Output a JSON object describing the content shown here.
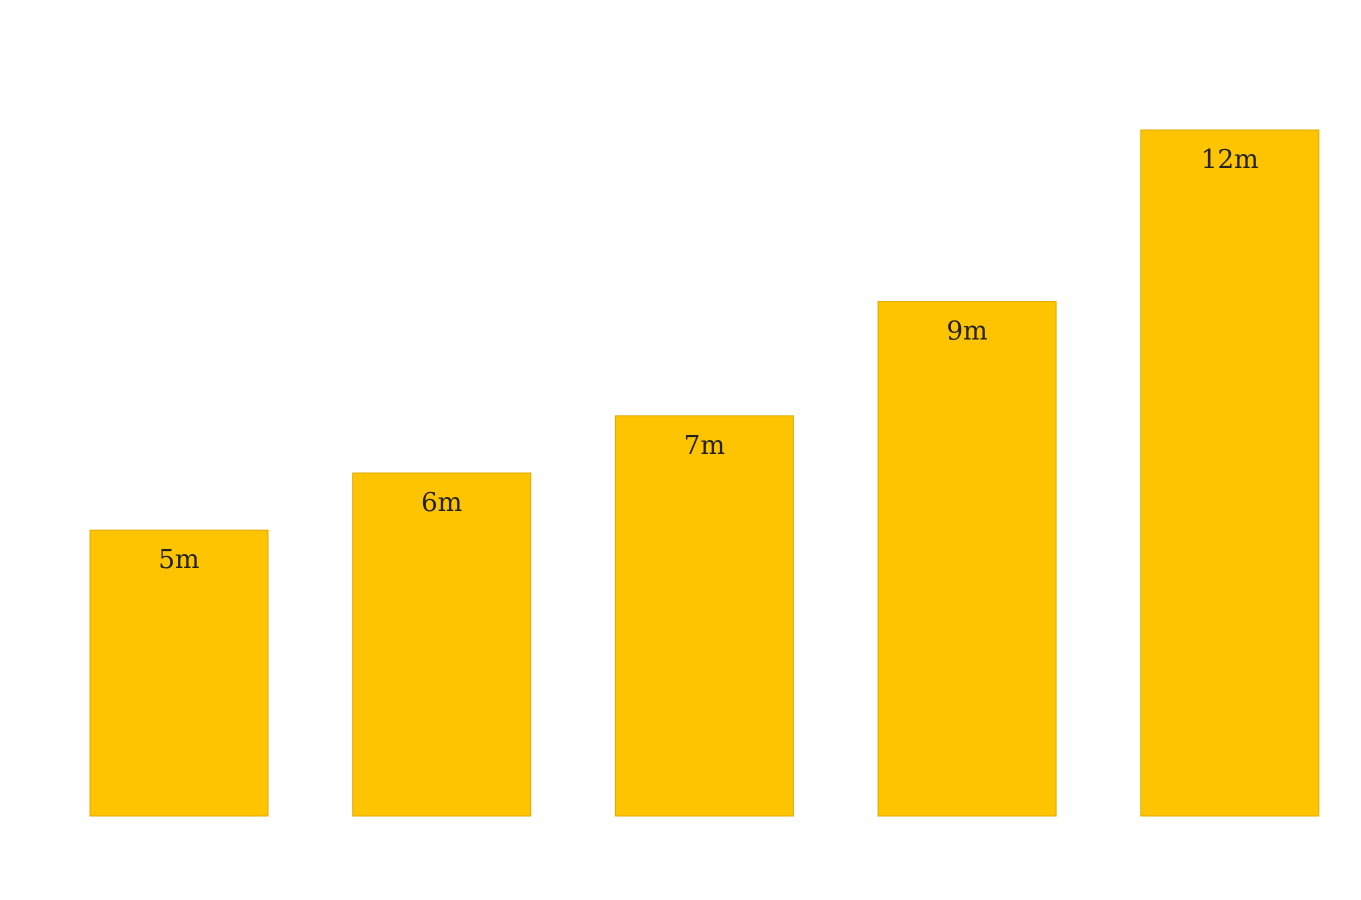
{
  "chart_data": {
    "type": "bar",
    "categories": [
      "",
      "",
      "",
      "",
      ""
    ],
    "values": [
      5,
      6,
      7,
      9,
      12
    ],
    "data_labels": [
      "5m",
      "6m",
      "7m",
      "9m",
      "12m"
    ],
    "unit": "m",
    "ylim": [
      0,
      12
    ],
    "grid": false,
    "axes_visible": false,
    "bar_color": "#FFC400",
    "background": "#FFFFFF"
  }
}
